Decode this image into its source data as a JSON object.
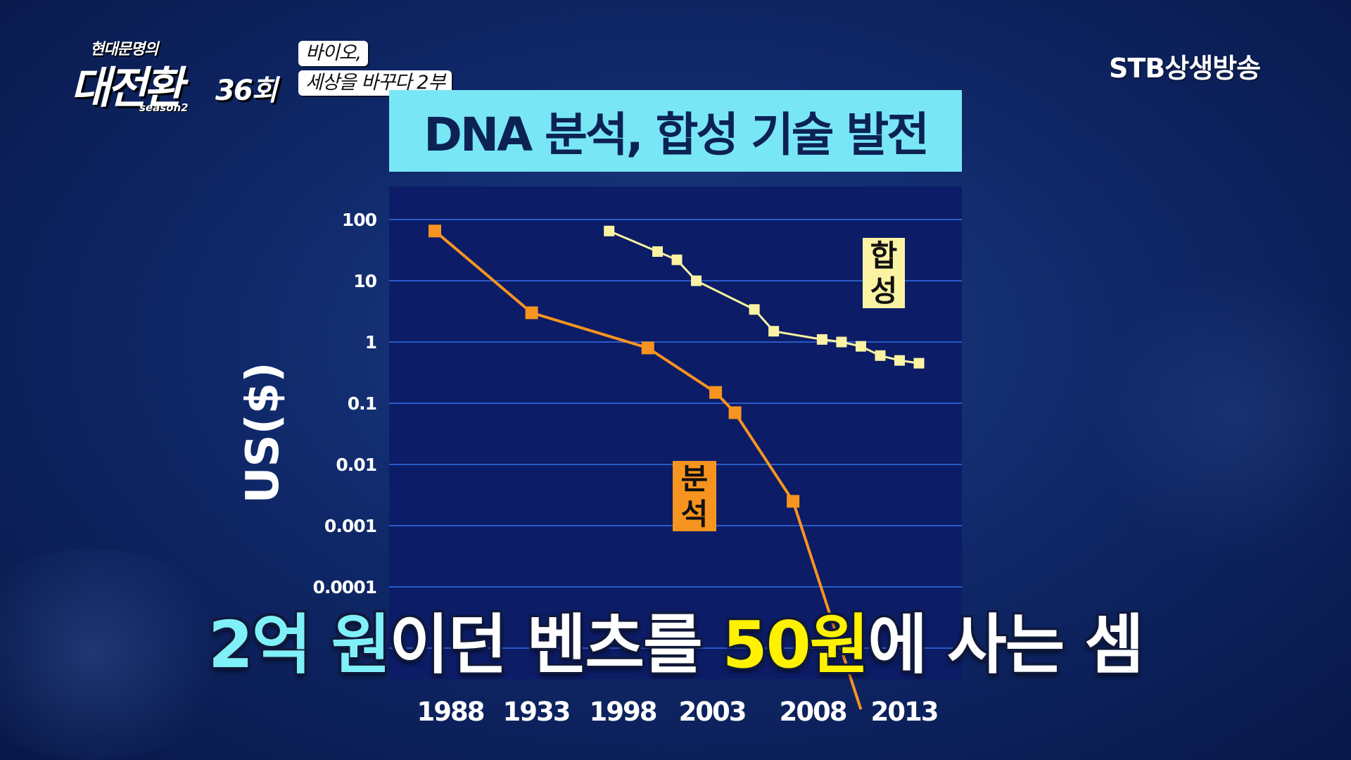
{
  "header": {
    "program_small": "현대문명의",
    "program_title": "대전환",
    "episode": "36회",
    "season": "season2",
    "episode_title_line1": "바이오,",
    "episode_title_line2": "세상을 바꾸다 2부",
    "broadcaster": "STB상생방송"
  },
  "subtitle": {
    "part1": "2억 원",
    "part2": "이던 벤츠를 ",
    "part3": "50원",
    "part4": "에 사는 셈"
  },
  "chart_data": {
    "type": "line",
    "title": "DNA 분석, 합성 기술 발전",
    "ylabel": "US($)",
    "xlabel": "",
    "y_scale": "log",
    "ylim": [
      1e-05,
      100
    ],
    "y_ticks": [
      100,
      10,
      1,
      0.1,
      0.01,
      0.001,
      0.0001
    ],
    "y_tick_labels": [
      "100",
      "10",
      "1",
      "0.1",
      "0.01",
      "0.001",
      "0.0001"
    ],
    "x_tick_labels": [
      "1988",
      "1933",
      "1998",
      "2003",
      "2008",
      "2013"
    ],
    "xlim": [
      1988,
      2013
    ],
    "grid": true,
    "colors": {
      "analysis": "#f79420",
      "synthesis": "#fbf3a3",
      "plot_bg": "#0c1c66"
    },
    "series": [
      {
        "name": "분석",
        "color": "#f79420",
        "x": [
          1988,
          1993,
          1999,
          2002.5,
          2003.5,
          2006.5,
          2010
        ],
        "y": [
          65,
          3,
          0.8,
          0.15,
          0.07,
          0.0025,
          1e-06
        ]
      },
      {
        "name": "합성",
        "color": "#fbf3a3",
        "x": [
          1997,
          1999.5,
          2000.5,
          2001.5,
          2004.5,
          2005.5,
          2008,
          2009,
          2010,
          2011,
          2012,
          2013
        ],
        "y": [
          65,
          30,
          22,
          10,
          3.4,
          1.5,
          1.1,
          1.0,
          0.85,
          0.6,
          0.5,
          0.45
        ]
      }
    ]
  }
}
